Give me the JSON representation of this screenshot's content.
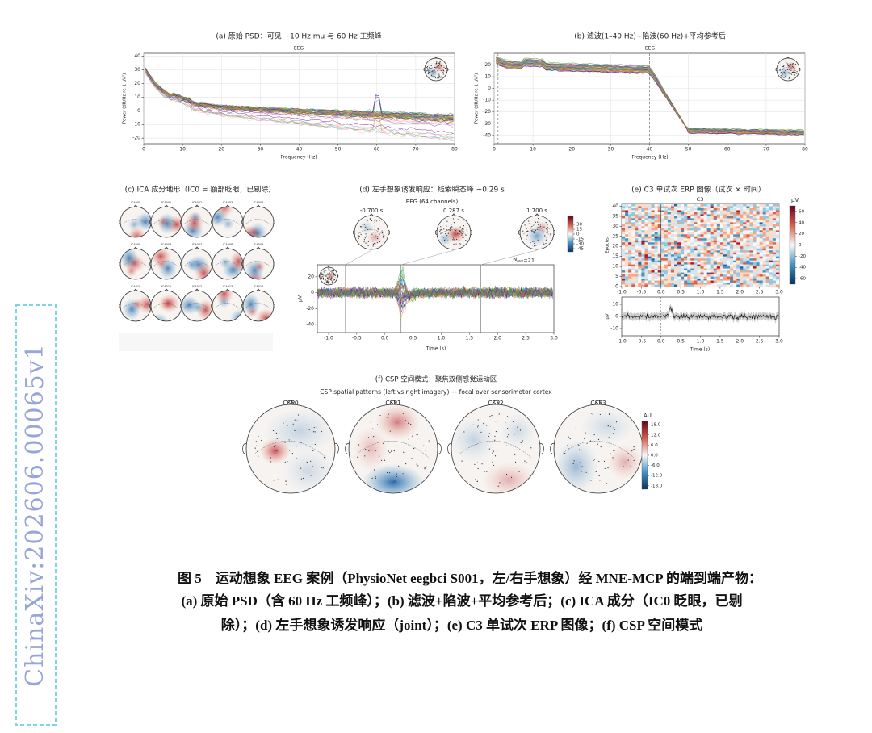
{
  "watermark": "ChinaXiv:202606.00065v1",
  "panels": {
    "a": {
      "title": "(a) 原始 PSD：可见 ~10 Hz mu 与 60 Hz 工频峰",
      "subtitle": "EEG",
      "xlabel": "Frequency (Hz)",
      "ylabel": "Power (dB/Hz re 1 µV²)",
      "xlim": [
        0,
        80
      ],
      "ylim": [
        -24,
        42
      ],
      "xticks": [
        0,
        10,
        20,
        30,
        40,
        50,
        60,
        70,
        80
      ],
      "yticks": [
        40,
        30,
        20,
        10,
        0,
        -10,
        -20
      ]
    },
    "b": {
      "title": "(b) 滤波(1–40 Hz)+陷波(60 Hz)+平均参考后",
      "subtitle": "EEG",
      "xlabel": "Frequency (Hz)",
      "ylabel": "Power (dB/Hz re 1 µV²)",
      "xlim": [
        0,
        80
      ],
      "ylim": [
        -47,
        30
      ],
      "xticks": [
        0,
        10,
        20,
        30,
        40,
        50,
        60,
        70,
        80
      ],
      "yticks": [
        20,
        10,
        0,
        -10,
        -20,
        -30,
        -40
      ],
      "vlines": [
        1,
        40
      ]
    },
    "c": {
      "title": "(c) ICA 成分地形（IC0 = 额部眨眼，已剔除）",
      "components": [
        "ICA000",
        "ICA001",
        "ICA002",
        "ICA003",
        "ICA004",
        "ICA005",
        "ICA006",
        "ICA007",
        "ICA008",
        "ICA009",
        "ICA010",
        "ICA011",
        "ICA012",
        "ICA013",
        "ICA014"
      ]
    },
    "d": {
      "title": "(d) 左手想象诱发响应：线索瞬态峰 ~0.29 s",
      "subtitle": "EEG (64 channels)",
      "times": [
        "-0.700 s",
        "0.287 s",
        "1.700 s"
      ],
      "vlines": [
        -0.7,
        0.287,
        1.7
      ],
      "nave": "N",
      "nave_sub": "ave",
      "nave_value": "=21",
      "xlabel": "Time (s)",
      "ylabel": "µV",
      "xlim": [
        -1.2,
        3.0
      ],
      "ylim": [
        -50,
        35
      ],
      "xticks": [
        {
          "value": -1.0,
          "label": "-1.0"
        },
        {
          "value": -0.5,
          "label": "-0.5"
        },
        {
          "value": 0,
          "label": "0.0"
        },
        {
          "value": 0.5,
          "label": "0.5"
        },
        {
          "value": 1.0,
          "label": "1.0"
        },
        {
          "value": 1.5,
          "label": "1.5"
        },
        {
          "value": 2.0,
          "label": "2.0"
        },
        {
          "value": 2.5,
          "label": "2.5"
        },
        {
          "value": 3.0,
          "label": "3.0"
        }
      ],
      "yticks": [
        20,
        0,
        -20,
        -40
      ],
      "cbar_lim": [
        -55,
        55
      ],
      "cbar_ticks": [
        30,
        15,
        0,
        -15,
        -30,
        -45
      ]
    },
    "e": {
      "title": "(e) C3 单试次 ERP 图像（试次 × 时间）",
      "subtitle": "C3",
      "ylabel": "Epochs",
      "xlabel": "Time (s)",
      "ylabel2": "µV",
      "cbar_label": "µV",
      "xlim": [
        -1.0,
        3.0
      ],
      "ylim": [
        0,
        41
      ],
      "yticks": [
        0,
        5,
        10,
        15,
        20,
        25,
        30,
        35,
        40
      ],
      "xticks": [
        {
          "value": -1.0,
          "label": "-1.0"
        },
        {
          "value": -0.5,
          "label": "-0.5"
        },
        {
          "value": 0,
          "label": "0.0"
        },
        {
          "value": 0.5,
          "label": "0.5"
        },
        {
          "value": 1.0,
          "label": "1.0"
        },
        {
          "value": 1.5,
          "label": "1.5"
        },
        {
          "value": 2.0,
          "label": "2.0"
        },
        {
          "value": 2.5,
          "label": "2.5"
        },
        {
          "value": 3.0,
          "label": "3.0"
        }
      ],
      "y2lim": [
        -16,
        16
      ],
      "y2ticks": [
        10,
        0,
        -10
      ],
      "cbar_lim": [
        -70,
        70
      ],
      "cbar_ticks": [
        60,
        40,
        20,
        0,
        -20,
        -40,
        -60
      ]
    },
    "f": {
      "title": "(f) CSP 空间模式：聚焦双侧感觉运动区",
      "subtitle": "CSP spatial patterns (left vs right imagery) — focal over sensorimotor cortex",
      "patterns": [
        "CSP0",
        "CSP1",
        "CSP2",
        "CSP3"
      ],
      "cbar_label": "AU",
      "cbar_lim": [
        -20,
        20
      ],
      "cbar_ticks": [
        {
          "value": 18,
          "label": "18.0"
        },
        {
          "value": 12,
          "label": "12.0"
        },
        {
          "value": 6,
          "label": "6.0"
        },
        {
          "value": 0,
          "label": "0.0"
        },
        {
          "value": -6,
          "label": "-6.0"
        },
        {
          "value": -12,
          "label": "-12.0"
        },
        {
          "value": -18,
          "label": "-18.0"
        }
      ]
    }
  },
  "caption": [
    "图 5　运动想象 EEG 案例（PhysioNet eegbci S001，左/右手想象）经 MNE-MCP 的端到端产物：",
    "(a) 原始 PSD（含 60 Hz 工频峰）；(b) 滤波+陷波+平均参考后；(c) ICA 成分（IC0 眨眼，已剔",
    "除）；(d) 左手想象诱发响应（joint）；(e) C3 单试次 ERP 图像；(f) CSP 空间模式"
  ]
}
